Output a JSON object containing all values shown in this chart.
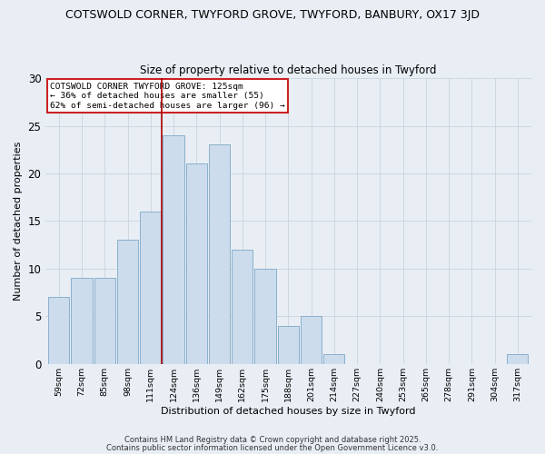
{
  "title1": "COTSWOLD CORNER, TWYFORD GROVE, TWYFORD, BANBURY, OX17 3JD",
  "title2": "Size of property relative to detached houses in Twyford",
  "xlabel": "Distribution of detached houses by size in Twyford",
  "ylabel": "Number of detached properties",
  "categories": [
    "59sqm",
    "72sqm",
    "85sqm",
    "98sqm",
    "111sqm",
    "124sqm",
    "136sqm",
    "149sqm",
    "162sqm",
    "175sqm",
    "188sqm",
    "201sqm",
    "214sqm",
    "227sqm",
    "240sqm",
    "253sqm",
    "265sqm",
    "278sqm",
    "291sqm",
    "304sqm",
    "317sqm"
  ],
  "values": [
    7,
    9,
    9,
    13,
    16,
    24,
    21,
    23,
    12,
    10,
    4,
    5,
    1,
    0,
    0,
    0,
    0,
    0,
    0,
    0,
    1
  ],
  "bar_color": "#ccdcec",
  "bar_edge_color": "#8ab0cc",
  "vline_x_index": 5,
  "vline_color": "#aa0000",
  "annotation_text": "COTSWOLD CORNER TWYFORD GROVE: 125sqm\n← 36% of detached houses are smaller (55)\n62% of semi-detached houses are larger (96) →",
  "annotation_box_color": "#ffffff",
  "annotation_box_edge": "#cc2222",
  "ylim": [
    0,
    30
  ],
  "yticks": [
    0,
    5,
    10,
    15,
    20,
    25,
    30
  ],
  "footer1": "Contains HM Land Registry data © Crown copyright and database right 2025.",
  "footer2": "Contains public sector information licensed under the Open Government Licence v3.0.",
  "bg_color": "#e8eef4",
  "plot_bg_color": "#e8eef4",
  "grid_color": "#c8d4de"
}
